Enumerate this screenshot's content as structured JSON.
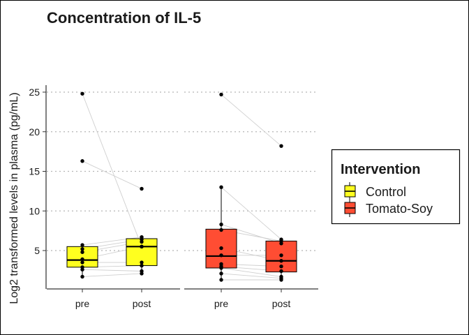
{
  "chart_data": {
    "type": "box",
    "title": "Concentration of IL-5",
    "xlabel": "",
    "ylabel": "Log2 transformed levels in plasma (pg/mL)",
    "ylim": [
      0.5,
      26
    ],
    "yticks": [
      5,
      10,
      15,
      20,
      25
    ],
    "categories": [
      "pre",
      "post"
    ],
    "grid": "horizontal dotted at major y ticks",
    "legend": {
      "title": "Intervention",
      "position": "right",
      "entries": [
        {
          "label": "Control",
          "color": "#ffff1f"
        },
        {
          "label": "Tomato-Soy",
          "color": "#ff4d33"
        }
      ]
    },
    "panels": [
      {
        "group": "Control",
        "color": "#ffff1f",
        "boxes": {
          "pre": {
            "q1": 2.9,
            "median": 3.8,
            "q3": 5.5,
            "whisker_low": 1.7,
            "whisker_high": 5.7
          },
          "post": {
            "q1": 3.1,
            "median": 5.5,
            "q3": 6.5,
            "whisker_low": 2.1,
            "whisker_high": 6.7
          }
        },
        "subjects": [
          {
            "pre": 24.8,
            "post": 5.5
          },
          {
            "pre": 16.3,
            "post": 12.8
          },
          {
            "pre": 5.7,
            "post": 6.7
          },
          {
            "pre": 5.2,
            "post": 6.4
          },
          {
            "pre": 4.8,
            "post": 6.1
          },
          {
            "pre": 3.9,
            "post": 5.5
          },
          {
            "pre": 3.5,
            "post": 3.5
          },
          {
            "pre": 2.9,
            "post": 3.1
          },
          {
            "pre": 2.6,
            "post": 2.4
          },
          {
            "pre": 1.7,
            "post": 2.1
          }
        ]
      },
      {
        "group": "Tomato-Soy",
        "color": "#ff4d33",
        "boxes": {
          "pre": {
            "q1": 2.8,
            "median": 4.3,
            "q3": 7.7,
            "whisker_low": 1.3,
            "whisker_high": 13.0
          },
          "post": {
            "q1": 2.3,
            "median": 3.7,
            "q3": 6.2,
            "whisker_low": 1.3,
            "whisker_high": 6.4
          }
        },
        "subjects": [
          {
            "pre": 24.7,
            "post": 18.2
          },
          {
            "pre": 13.0,
            "post": 6.4
          },
          {
            "pre": 8.3,
            "post": 5.9
          },
          {
            "pre": 7.6,
            "post": 6.2
          },
          {
            "pre": 5.3,
            "post": 3.7
          },
          {
            "pre": 4.4,
            "post": 4.4
          },
          {
            "pre": 3.3,
            "post": 3.0
          },
          {
            "pre": 3.0,
            "post": 2.4
          },
          {
            "pre": 2.8,
            "post": 1.7
          },
          {
            "pre": 2.1,
            "post": 1.5
          },
          {
            "pre": 1.3,
            "post": 1.3
          }
        ]
      }
    ]
  }
}
